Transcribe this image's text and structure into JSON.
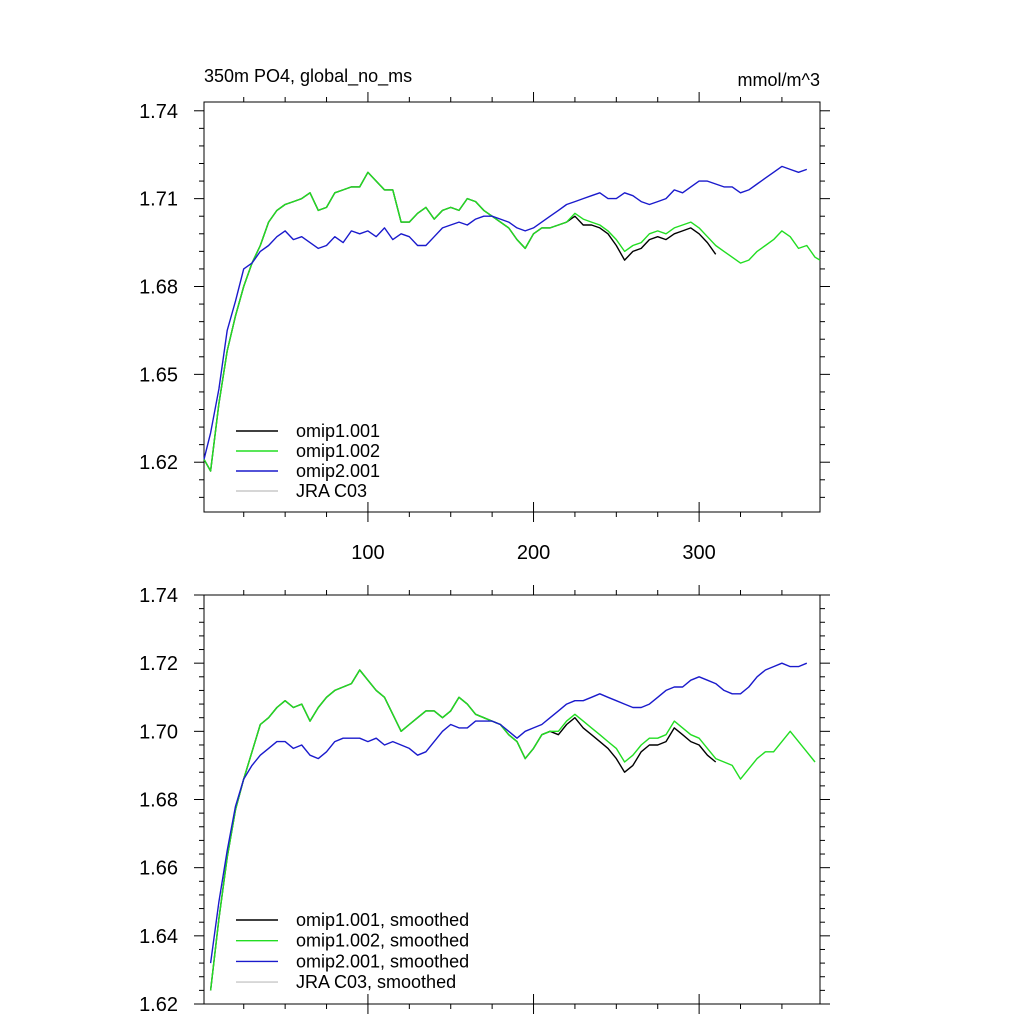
{
  "chart_data": [
    {
      "type": "line",
      "title": "350m PO4, global_no_ms",
      "units": "mmol/m^3",
      "xlim": [
        1,
        373
      ],
      "ylim": [
        1.603,
        1.743
      ],
      "x_tick_labels": [
        "100",
        "200",
        "300"
      ],
      "y_tick_labels": [
        "1.74",
        "1.71",
        "1.68",
        "1.65",
        "1.62"
      ],
      "x_ticks": [
        100,
        200,
        300
      ],
      "y_ticks": [
        1.74,
        1.71,
        1.68,
        1.65,
        1.62
      ],
      "legend_position": "bottom-left",
      "series": [
        {
          "name": "omip1.001",
          "color": "#000000",
          "x": [
            1,
            5,
            10,
            15,
            20,
            25,
            30,
            35,
            40,
            45,
            50,
            55,
            60,
            65,
            70,
            75,
            80,
            85,
            90,
            95,
            100,
            105,
            110,
            115,
            120,
            125,
            130,
            135,
            140,
            145,
            150,
            155,
            160,
            165,
            170,
            175,
            180,
            185,
            190,
            195,
            200,
            205,
            210,
            215,
            220,
            225,
            230,
            235,
            240,
            245,
            250,
            255,
            260,
            265,
            270,
            275,
            280,
            285,
            290,
            295,
            300,
            305,
            310
          ],
          "y": [
            1.621,
            1.617,
            1.64,
            1.658,
            1.67,
            1.68,
            1.688,
            1.694,
            1.702,
            1.706,
            1.708,
            1.709,
            1.71,
            1.712,
            1.706,
            1.707,
            1.712,
            1.713,
            1.714,
            1.714,
            1.719,
            1.716,
            1.713,
            1.713,
            1.702,
            1.702,
            1.705,
            1.707,
            1.703,
            1.706,
            1.707,
            1.706,
            1.71,
            1.709,
            1.706,
            1.704,
            1.702,
            1.7,
            1.696,
            1.693,
            1.698,
            1.7,
            1.7,
            1.701,
            1.702,
            1.704,
            1.701,
            1.701,
            1.7,
            1.698,
            1.694,
            1.689,
            1.692,
            1.693,
            1.696,
            1.697,
            1.696,
            1.698,
            1.699,
            1.7,
            1.698,
            1.695,
            1.691
          ]
        },
        {
          "name": "omip1.002",
          "color": "#22dd22",
          "x": [
            1,
            5,
            10,
            15,
            20,
            25,
            30,
            35,
            40,
            45,
            50,
            55,
            60,
            65,
            70,
            75,
            80,
            85,
            90,
            95,
            100,
            105,
            110,
            115,
            120,
            125,
            130,
            135,
            140,
            145,
            150,
            155,
            160,
            165,
            170,
            175,
            180,
            185,
            190,
            195,
            200,
            205,
            210,
            215,
            220,
            225,
            230,
            235,
            240,
            245,
            250,
            255,
            260,
            265,
            270,
            275,
            280,
            285,
            290,
            295,
            300,
            305,
            310,
            315,
            320,
            325,
            330,
            335,
            340,
            345,
            350,
            355,
            360,
            365,
            370,
            373
          ],
          "y": [
            1.621,
            1.617,
            1.64,
            1.658,
            1.67,
            1.68,
            1.688,
            1.694,
            1.702,
            1.706,
            1.708,
            1.709,
            1.71,
            1.712,
            1.706,
            1.707,
            1.712,
            1.713,
            1.714,
            1.714,
            1.719,
            1.716,
            1.713,
            1.713,
            1.702,
            1.702,
            1.705,
            1.707,
            1.703,
            1.706,
            1.707,
            1.706,
            1.71,
            1.709,
            1.706,
            1.704,
            1.702,
            1.7,
            1.696,
            1.693,
            1.698,
            1.7,
            1.7,
            1.701,
            1.702,
            1.705,
            1.703,
            1.702,
            1.701,
            1.699,
            1.696,
            1.692,
            1.694,
            1.695,
            1.698,
            1.699,
            1.698,
            1.7,
            1.701,
            1.702,
            1.7,
            1.697,
            1.694,
            1.692,
            1.69,
            1.688,
            1.689,
            1.692,
            1.694,
            1.696,
            1.699,
            1.697,
            1.693,
            1.694,
            1.69,
            1.689
          ]
        },
        {
          "name": "omip2.001",
          "color": "#1a1acc",
          "x": [
            1,
            5,
            10,
            15,
            20,
            25,
            30,
            35,
            40,
            45,
            50,
            55,
            60,
            65,
            70,
            75,
            80,
            85,
            90,
            95,
            100,
            105,
            110,
            115,
            120,
            125,
            130,
            135,
            140,
            145,
            150,
            155,
            160,
            165,
            170,
            175,
            180,
            185,
            190,
            195,
            200,
            205,
            210,
            215,
            220,
            225,
            230,
            235,
            240,
            245,
            250,
            255,
            260,
            265,
            270,
            275,
            280,
            285,
            290,
            295,
            300,
            305,
            310,
            315,
            320,
            325,
            330,
            335,
            340,
            345,
            350,
            355,
            360,
            365
          ],
          "y": [
            1.621,
            1.63,
            1.645,
            1.665,
            1.675,
            1.686,
            1.688,
            1.692,
            1.694,
            1.697,
            1.699,
            1.696,
            1.697,
            1.695,
            1.693,
            1.694,
            1.697,
            1.695,
            1.699,
            1.698,
            1.699,
            1.697,
            1.7,
            1.696,
            1.698,
            1.697,
            1.694,
            1.694,
            1.697,
            1.7,
            1.701,
            1.702,
            1.701,
            1.703,
            1.704,
            1.704,
            1.703,
            1.702,
            1.7,
            1.699,
            1.7,
            1.702,
            1.704,
            1.706,
            1.708,
            1.709,
            1.71,
            1.711,
            1.712,
            1.71,
            1.71,
            1.712,
            1.711,
            1.709,
            1.708,
            1.709,
            1.71,
            1.713,
            1.712,
            1.714,
            1.716,
            1.716,
            1.715,
            1.714,
            1.714,
            1.712,
            1.713,
            1.715,
            1.717,
            1.719,
            1.721,
            1.72,
            1.719,
            1.72
          ]
        },
        {
          "name": "JRA C03",
          "color": "#c8c8c8",
          "x": [],
          "y": []
        }
      ]
    },
    {
      "type": "line",
      "xlim": [
        1,
        373
      ],
      "ylim": [
        1.62,
        1.74
      ],
      "x_ticks": [
        100,
        200,
        300
      ],
      "y_tick_labels": [
        "1.74",
        "1.72",
        "1.70",
        "1.68",
        "1.66",
        "1.64",
        "1.62"
      ],
      "y_ticks": [
        1.74,
        1.72,
        1.7,
        1.68,
        1.66,
        1.64,
        1.62
      ],
      "legend_position": "bottom-left",
      "series": [
        {
          "name": "omip1.001, smoothed",
          "color": "#000000",
          "x": [
            5,
            10,
            15,
            20,
            25,
            30,
            35,
            40,
            45,
            50,
            55,
            60,
            65,
            70,
            75,
            80,
            85,
            90,
            95,
            100,
            105,
            110,
            115,
            120,
            125,
            130,
            135,
            140,
            145,
            150,
            155,
            160,
            165,
            170,
            175,
            180,
            185,
            190,
            195,
            200,
            205,
            210,
            215,
            220,
            225,
            230,
            235,
            240,
            245,
            250,
            255,
            260,
            265,
            270,
            275,
            280,
            285,
            290,
            295,
            300,
            305,
            310
          ],
          "y": [
            1.624,
            1.645,
            1.663,
            1.677,
            1.686,
            1.694,
            1.702,
            1.704,
            1.707,
            1.709,
            1.707,
            1.708,
            1.703,
            1.707,
            1.71,
            1.712,
            1.713,
            1.714,
            1.718,
            1.715,
            1.712,
            1.71,
            1.705,
            1.7,
            1.702,
            1.704,
            1.706,
            1.706,
            1.704,
            1.706,
            1.71,
            1.708,
            1.705,
            1.704,
            1.703,
            1.702,
            1.699,
            1.697,
            1.692,
            1.695,
            1.699,
            1.7,
            1.699,
            1.702,
            1.704,
            1.701,
            1.699,
            1.697,
            1.695,
            1.692,
            1.688,
            1.69,
            1.694,
            1.696,
            1.696,
            1.697,
            1.701,
            1.699,
            1.697,
            1.696,
            1.693,
            1.691
          ]
        },
        {
          "name": "omip1.002, smoothed",
          "color": "#22dd22",
          "x": [
            5,
            10,
            15,
            20,
            25,
            30,
            35,
            40,
            45,
            50,
            55,
            60,
            65,
            70,
            75,
            80,
            85,
            90,
            95,
            100,
            105,
            110,
            115,
            120,
            125,
            130,
            135,
            140,
            145,
            150,
            155,
            160,
            165,
            170,
            175,
            180,
            185,
            190,
            195,
            200,
            205,
            210,
            215,
            220,
            225,
            230,
            235,
            240,
            245,
            250,
            255,
            260,
            265,
            270,
            275,
            280,
            285,
            290,
            295,
            300,
            305,
            310,
            315,
            320,
            325,
            330,
            335,
            340,
            345,
            350,
            355,
            360,
            365,
            370
          ],
          "y": [
            1.624,
            1.645,
            1.663,
            1.677,
            1.686,
            1.694,
            1.702,
            1.704,
            1.707,
            1.709,
            1.707,
            1.708,
            1.703,
            1.707,
            1.71,
            1.712,
            1.713,
            1.714,
            1.718,
            1.715,
            1.712,
            1.71,
            1.705,
            1.7,
            1.702,
            1.704,
            1.706,
            1.706,
            1.704,
            1.706,
            1.71,
            1.708,
            1.705,
            1.704,
            1.703,
            1.702,
            1.699,
            1.697,
            1.692,
            1.695,
            1.699,
            1.7,
            1.7,
            1.703,
            1.705,
            1.703,
            1.701,
            1.699,
            1.697,
            1.695,
            1.691,
            1.693,
            1.696,
            1.698,
            1.698,
            1.699,
            1.703,
            1.701,
            1.699,
            1.698,
            1.695,
            1.692,
            1.691,
            1.69,
            1.686,
            1.689,
            1.692,
            1.694,
            1.694,
            1.697,
            1.7,
            1.697,
            1.694,
            1.691
          ]
        },
        {
          "name": "omip2.001, smoothed",
          "color": "#1a1acc",
          "x": [
            5,
            10,
            15,
            20,
            25,
            30,
            35,
            40,
            45,
            50,
            55,
            60,
            65,
            70,
            75,
            80,
            85,
            90,
            95,
            100,
            105,
            110,
            115,
            120,
            125,
            130,
            135,
            140,
            145,
            150,
            155,
            160,
            165,
            170,
            175,
            180,
            185,
            190,
            195,
            200,
            205,
            210,
            215,
            220,
            225,
            230,
            235,
            240,
            245,
            250,
            255,
            260,
            265,
            270,
            275,
            280,
            285,
            290,
            295,
            300,
            305,
            310,
            315,
            320,
            325,
            330,
            335,
            340,
            345,
            350,
            355,
            360,
            365
          ],
          "y": [
            1.632,
            1.65,
            1.665,
            1.678,
            1.686,
            1.69,
            1.693,
            1.695,
            1.697,
            1.697,
            1.695,
            1.696,
            1.693,
            1.692,
            1.694,
            1.697,
            1.698,
            1.698,
            1.698,
            1.697,
            1.698,
            1.696,
            1.697,
            1.696,
            1.695,
            1.693,
            1.694,
            1.697,
            1.7,
            1.702,
            1.701,
            1.701,
            1.703,
            1.703,
            1.703,
            1.702,
            1.7,
            1.698,
            1.7,
            1.701,
            1.702,
            1.704,
            1.706,
            1.708,
            1.709,
            1.709,
            1.71,
            1.711,
            1.71,
            1.709,
            1.708,
            1.707,
            1.707,
            1.708,
            1.71,
            1.712,
            1.713,
            1.713,
            1.715,
            1.716,
            1.715,
            1.714,
            1.712,
            1.711,
            1.711,
            1.713,
            1.716,
            1.718,
            1.719,
            1.72,
            1.719,
            1.719,
            1.72
          ]
        },
        {
          "name": "JRA C03, smoothed",
          "color": "#c8c8c8",
          "x": [],
          "y": []
        }
      ]
    }
  ]
}
